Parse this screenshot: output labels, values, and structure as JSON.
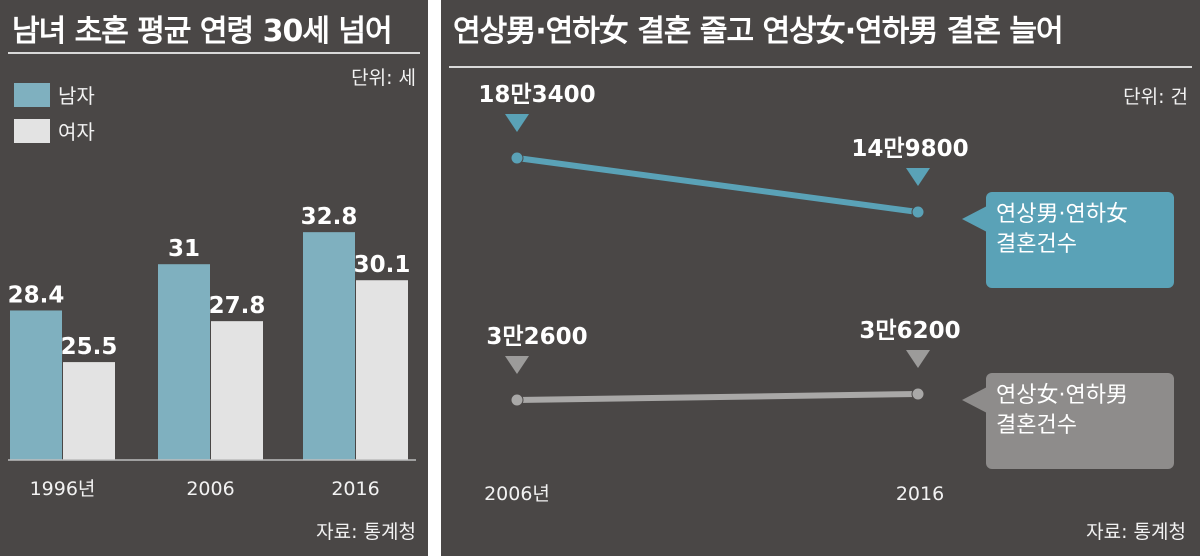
{
  "colors": {
    "men": "#7fb0bf",
    "women": "#e3e3e3",
    "older_men_line": "#5aa2b7",
    "older_women_line": "#a9a8a7",
    "background": "#4a4746"
  },
  "left": {
    "title": "남녀 초혼 평균 연령 30세 넘어",
    "unit": "단위: 세",
    "source": "자료: 통계청",
    "legend": [
      {
        "label": "남자",
        "color": "#7fb0bf"
      },
      {
        "label": "여자",
        "color": "#e3e3e3"
      }
    ]
  },
  "right": {
    "title": "연상男·연하女 결혼 줄고 연상女·연하男 결혼 늘어",
    "unit": "단위: 건",
    "source": "자료: 통계청",
    "callout_men": {
      "line1": "연상男·연하女",
      "line2": "결혼건수"
    },
    "callout_women": {
      "line1": "연상女·연하男",
      "line2": "결혼건수"
    }
  },
  "chart_data": [
    {
      "type": "bar",
      "title": "남녀 초혼 평균 연령 30세 넘어",
      "categories": [
        "1996년",
        "2006",
        "2016"
      ],
      "series": [
        {
          "name": "남자",
          "values": [
            28.4,
            31,
            32.8
          ],
          "labels": [
            "28.4",
            "31",
            "32.8"
          ]
        },
        {
          "name": "여자",
          "values": [
            25.5,
            27.8,
            30.1
          ],
          "labels": [
            "25.5",
            "27.8",
            "30.1"
          ]
        }
      ],
      "unit": "단위: 세",
      "legend": "top-left",
      "grid": false
    },
    {
      "type": "line",
      "title": "연상男·연하女 결혼 줄고 연상女·연하男 결혼 늘어",
      "x": [
        "2006년",
        "2016"
      ],
      "series": [
        {
          "name": "연상男·연하女 결혼건수",
          "values": [
            183400,
            149800
          ],
          "labels": [
            "18만3400",
            "14만9800"
          ]
        },
        {
          "name": "연상女·연하男 결혼건수",
          "values": [
            32600,
            36200
          ],
          "labels": [
            "3만2600",
            "3만6200"
          ]
        }
      ],
      "unit": "단위: 건",
      "grid": false
    }
  ]
}
